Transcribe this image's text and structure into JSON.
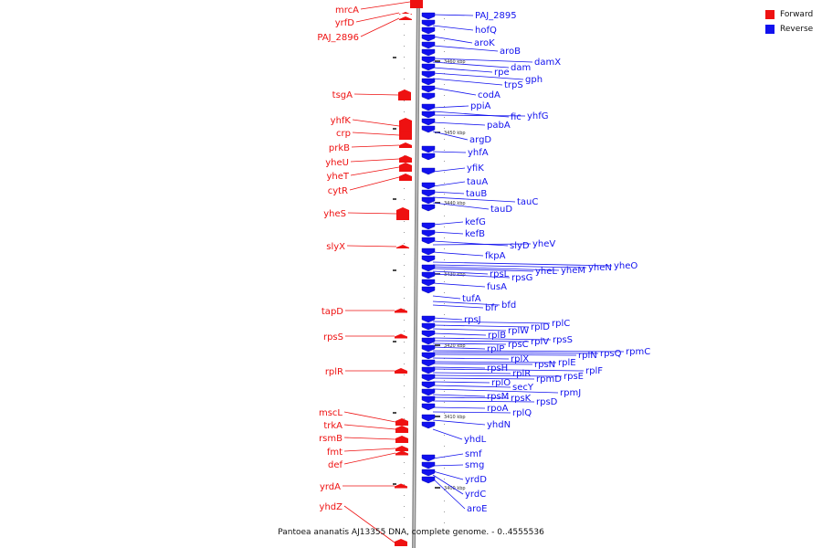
{
  "legend": {
    "forward_label": "Forward",
    "reverse_label": "Reverse",
    "forward_color": "#ee1111",
    "reverse_color": "#1111ee"
  },
  "caption": "Pantoea ananatis AJ13355 DNA, complete genome. - 0..4555536",
  "scale_labels": [
    "3460 kbp",
    "3450 kbp",
    "3440 kbp",
    "3430 kbp",
    "3420 kbp",
    "3410 kbp",
    "3400 kbp"
  ],
  "forward_genes": [
    "mrcA",
    "yrfD",
    "PAJ_2896",
    "tsgA",
    "yhfK",
    "crp",
    "prkB",
    "yheU",
    "yheT",
    "cytR",
    "yheS",
    "slyX",
    "tapD",
    "rpsS",
    "rplR",
    "mscL",
    "trkA",
    "rsmB",
    "fmt",
    "def",
    "yrdA",
    "yhdZ"
  ],
  "reverse_genes": [
    "PAJ_2895",
    "hofQ",
    "aroK",
    "aroB",
    "damX",
    "dam",
    "rpe",
    "gph",
    "trpS",
    "codA",
    "ppiA",
    "fic",
    "yhfG",
    "pabA",
    "argD",
    "yhfA",
    "yfiK",
    "tauA",
    "tauB",
    "tauC",
    "tauD",
    "kefG",
    "kefB",
    "slyD",
    "yheV",
    "fkpA",
    "yheO",
    "yheN",
    "yheM",
    "yheL",
    "rpsL",
    "rpsG",
    "fusA",
    "tufA",
    "bfd",
    "bfr",
    "rpsJ",
    "rplC",
    "rplD",
    "rplW",
    "rplB",
    "rpsS",
    "rplV",
    "rpsC",
    "rplP",
    "rpmC",
    "rpsQ",
    "rplN",
    "rplX",
    "rplE",
    "rpsN",
    "rpsH",
    "rplF",
    "rplR",
    "rpsE",
    "rpmD",
    "rplO",
    "secY",
    "rpmJ",
    "rpsM",
    "rpsK",
    "rpsD",
    "rpoA",
    "rplQ",
    "yhdN",
    "yhdL",
    "smf",
    "smg",
    "yrdD",
    "yrdC",
    "aroE"
  ]
}
